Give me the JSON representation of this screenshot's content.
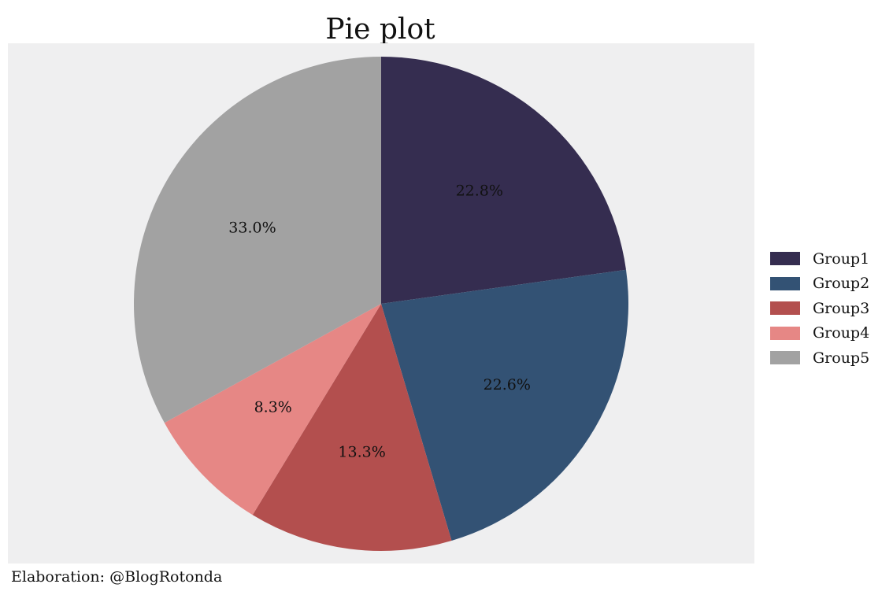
{
  "chart_data": {
    "type": "pie",
    "title": "Pie plot",
    "categories": [
      "Group1",
      "Group2",
      "Group3",
      "Group4",
      "Group5"
    ],
    "values": [
      22.8,
      22.6,
      13.3,
      8.3,
      33.0
    ],
    "labels": [
      "22.8%",
      "22.6%",
      "13.3%",
      "8.3%",
      "33.0%"
    ],
    "colors": [
      "#352d50",
      "#335274",
      "#b34f4e",
      "#e68785",
      "#a2a2a2"
    ],
    "start": "12 o'clock",
    "direction": "clockwise",
    "legend_position": "right",
    "background": "#efeff0"
  },
  "caption": "Elaboration: @BlogRotonda"
}
